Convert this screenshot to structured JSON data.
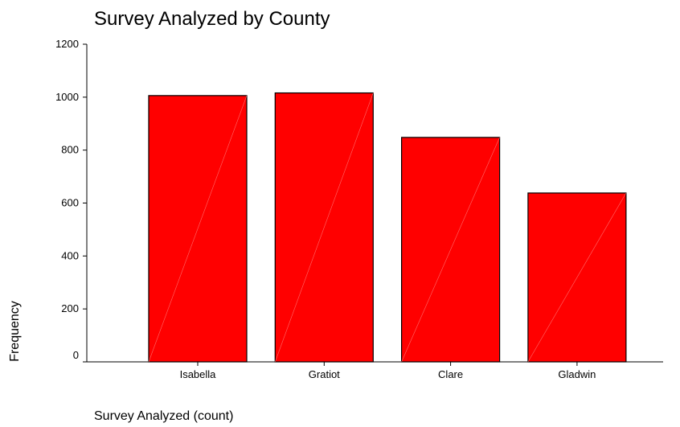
{
  "chart_data": {
    "type": "bar",
    "title": "Survey Analyzed by County",
    "xlabel": "Survey Analyzed (count)",
    "ylabel": "Frequency",
    "categories": [
      "Isabella",
      "Gratiot",
      "Clare",
      "Gladwin"
    ],
    "values": [
      1006,
      1016,
      848,
      638
    ],
    "ylim": [
      0,
      1200
    ],
    "yticks": [
      "0",
      "200",
      "400",
      "600",
      "800",
      "1000",
      "1200"
    ],
    "grid": false,
    "bar_color": "#ff0000",
    "bar_stroke": "#000000"
  }
}
